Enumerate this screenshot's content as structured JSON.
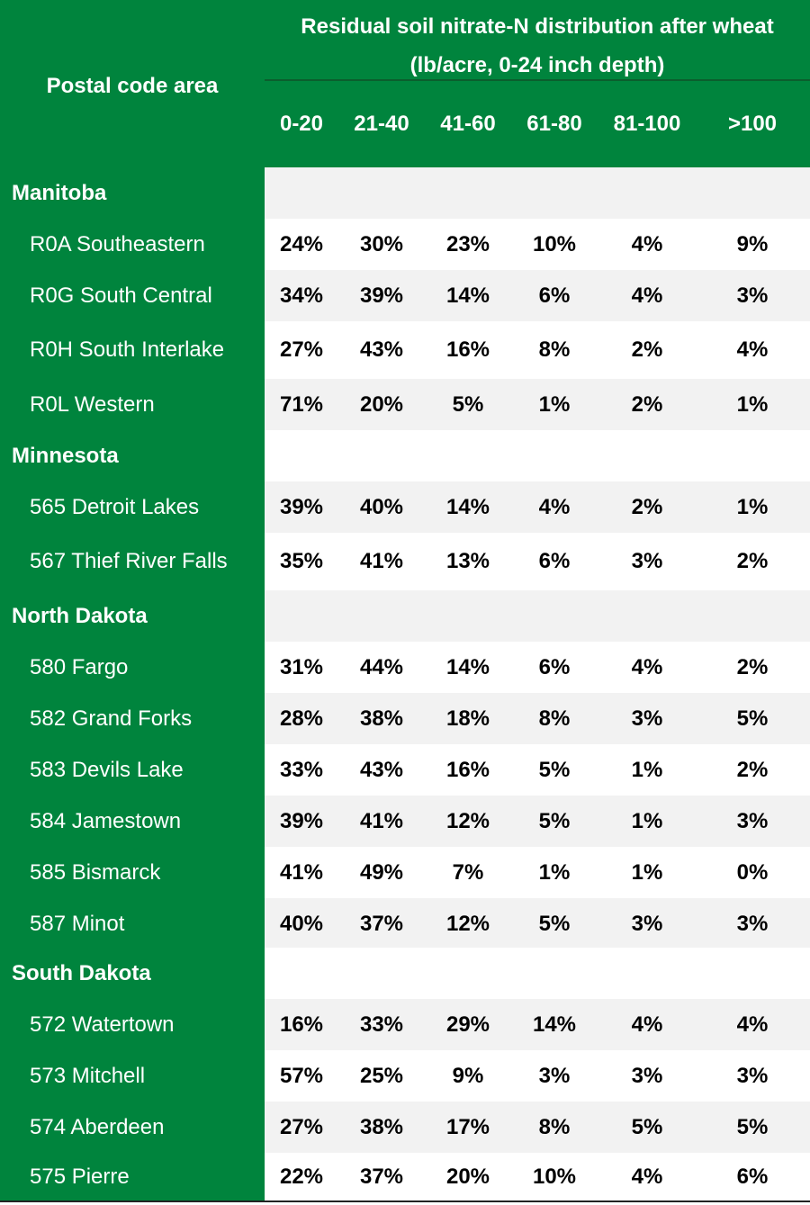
{
  "header": {
    "title_line1": "Residual soil nitrate-N distribution after wheat",
    "title_line2": "(lb/acre, 0-24 inch depth)",
    "postal_label": "Postal code area",
    "bins": [
      "0-20",
      "21-40",
      "41-60",
      "61-80",
      "81-100",
      ">100"
    ]
  },
  "colors": {
    "header_green": "#00843d",
    "band_grey": "#f2f2f2",
    "text_white": "#ffffff"
  },
  "groups": [
    {
      "name": "Manitoba",
      "areas": [
        {
          "label": "R0A Southeastern",
          "values": [
            "24%",
            "30%",
            "23%",
            "10%",
            "4%",
            "9%"
          ]
        },
        {
          "label": "R0G South Central",
          "values": [
            "34%",
            "39%",
            "14%",
            "6%",
            "4%",
            "3%"
          ]
        },
        {
          "label": "R0H South Interlake",
          "values": [
            "27%",
            "43%",
            "16%",
            "8%",
            "2%",
            "4%"
          ]
        },
        {
          "label": "R0L Western",
          "values": [
            "71%",
            "20%",
            "5%",
            "1%",
            "2%",
            "1%"
          ]
        }
      ]
    },
    {
      "name": "Minnesota",
      "areas": [
        {
          "label": "565 Detroit Lakes",
          "values": [
            "39%",
            "40%",
            "14%",
            "4%",
            "2%",
            "1%"
          ]
        },
        {
          "label": "567 Thief River Falls",
          "values": [
            "35%",
            "41%",
            "13%",
            "6%",
            "3%",
            "2%"
          ]
        }
      ]
    },
    {
      "name": "North Dakota",
      "areas": [
        {
          "label": "580 Fargo",
          "values": [
            "31%",
            "44%",
            "14%",
            "6%",
            "4%",
            "2%"
          ]
        },
        {
          "label": "582 Grand Forks",
          "values": [
            "28%",
            "38%",
            "18%",
            "8%",
            "3%",
            "5%"
          ]
        },
        {
          "label": "583 Devils Lake",
          "values": [
            "33%",
            "43%",
            "16%",
            "5%",
            "1%",
            "2%"
          ]
        },
        {
          "label": "584 Jamestown",
          "values": [
            "39%",
            "41%",
            "12%",
            "5%",
            "1%",
            "3%"
          ]
        },
        {
          "label": "585 Bismarck",
          "values": [
            "41%",
            "49%",
            "7%",
            "1%",
            "1%",
            "0%"
          ]
        },
        {
          "label": "587 Minot",
          "values": [
            "40%",
            "37%",
            "12%",
            "5%",
            "3%",
            "3%"
          ]
        }
      ]
    },
    {
      "name": "South Dakota",
      "areas": [
        {
          "label": "572 Watertown",
          "values": [
            "16%",
            "33%",
            "29%",
            "14%",
            "4%",
            "4%"
          ]
        },
        {
          "label": "573 Mitchell",
          "values": [
            "57%",
            "25%",
            "9%",
            "3%",
            "3%",
            "3%"
          ]
        },
        {
          "label": "574 Aberdeen",
          "values": [
            "27%",
            "38%",
            "17%",
            "8%",
            "5%",
            "5%"
          ]
        },
        {
          "label": "575 Pierre",
          "values": [
            "22%",
            "37%",
            "20%",
            "10%",
            "4%",
            "6%"
          ]
        }
      ]
    }
  ]
}
